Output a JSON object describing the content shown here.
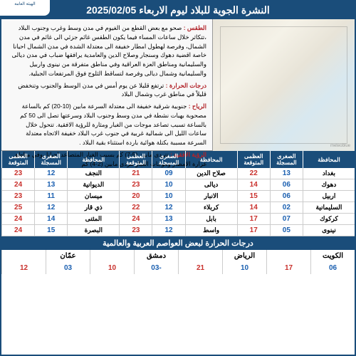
{
  "header": {
    "title": "النشرة الجوية للبلاد ليوم الاربعاء 2025/02/05"
  },
  "logo": {
    "text": "الهيئة العامة"
  },
  "weather": {
    "taqs_label": "الطقس :",
    "taqs_text": "صحو مع بعض القطع من الغيوم في مدن وسط وغرب وجنوب البلاد ،تتكاثر خلال ساعات المساء فيما يكون الطقس غائم جزئي الى غائم في مدن الشمال، وفرصة لهطول امطار خفيفة الى معتدلة الشدة في مدن الشمال احيانا خاصة اقضية دهوك وسنجار وصلاح الدين والعامدية يرافقها ضباب في مدن ديالى والسليمانية ومناطق العزة العراقية وفي مناطق متفرقة من نينوى واربيل والسليمانية وشمال ديالى وفرصة لتساقط الثلوج فوق المرتفعات الجبلية.",
    "harara_label": "درجات الحرارة :",
    "harara_text": "ترتفع قليلا عن يوم أمس في مدن الوسط والجنوب وتنخفض قليلاً في مناطق غرب وشمال البلاد",
    "riyah_label": "الرياح :",
    "riyah_text": "جنوبية شرقية خفيفة الى معتدلة السرعة مابين (10-20) كم بالساعة مصحوبة بهبات نشطة في مدن وسط وجنوب البلاد وسرعتها تصل الى 50 كم بالساعة تسبب تصاعد موجات من الغبار ومثارة للرؤية الافقية. تتحول خلال ساعات الليل الى شمالية غربية في جنوب غرب البلاد خفيفة الاتجاه معتدلة السرعة مسببة بكتلة هوائية باردة استثناء بقية البلاد .",
    "roya_label": "الرؤية الافقية :",
    "roya_text": "تتردى مابين (5-7) كم بسبب الغبار المتصاعد احيانا ،وفي مناطق غزارة الامطار وموجات الغبار تتردى مابين (2-4) كم"
  },
  "table": {
    "headers": {
      "prov": "المحافظة",
      "min_rec": "الصغرى المسجلة",
      "max_exp": "العظمى المتوقعة"
    },
    "rows": [
      [
        {
          "p": "بغداد",
          "lo": "13",
          "hi": "22"
        },
        {
          "p": "صلاح الدين",
          "lo": "09",
          "hi": "21"
        },
        {
          "p": "النجف",
          "lo": "12",
          "hi": "23"
        }
      ],
      [
        {
          "p": "دهوك",
          "lo": "06",
          "hi": "14"
        },
        {
          "p": "ديالى",
          "lo": "10",
          "hi": "23"
        },
        {
          "p": "الديوانية",
          "lo": "13",
          "hi": "24"
        }
      ],
      [
        {
          "p": "اربيل",
          "lo": "06",
          "hi": "15"
        },
        {
          "p": "الانبار",
          "lo": "10",
          "hi": "20"
        },
        {
          "p": "ميسان",
          "lo": "11",
          "hi": "23"
        }
      ],
      [
        {
          "p": "السليمانية",
          "lo": "02",
          "hi": "14"
        },
        {
          "p": "كربلاء",
          "lo": "12",
          "hi": "22"
        },
        {
          "p": "ذي قار",
          "lo": "12",
          "hi": "25"
        }
      ],
      [
        {
          "p": "كركوك",
          "lo": "07",
          "hi": "17"
        },
        {
          "p": "بابل",
          "lo": "13",
          "hi": "24"
        },
        {
          "p": "المثنى",
          "lo": "14",
          "hi": "24"
        }
      ],
      [
        {
          "p": "نينوى",
          "lo": "05",
          "hi": "17"
        },
        {
          "p": "واسط",
          "lo": "12",
          "hi": "23"
        },
        {
          "p": "البصرة",
          "lo": "15",
          "hi": "24"
        }
      ]
    ]
  },
  "world": {
    "title": "درجات الحرارة لبعض العواصم العربية والعالمية",
    "cities": [
      {
        "name": "الكويت",
        "lo": "06",
        "hi": "17"
      },
      {
        "name": "الرياض",
        "lo": "10",
        "hi": "21"
      },
      {
        "name": "دمشق",
        "lo": "-03",
        "hi": "10"
      },
      {
        "name": "عمّان",
        "lo": "03",
        "hi": "12"
      }
    ]
  },
  "colors": {
    "primary": "#1a4d7a",
    "blue": "#1a5fb0",
    "red": "#c9302c",
    "label_red": "#b2242a"
  }
}
